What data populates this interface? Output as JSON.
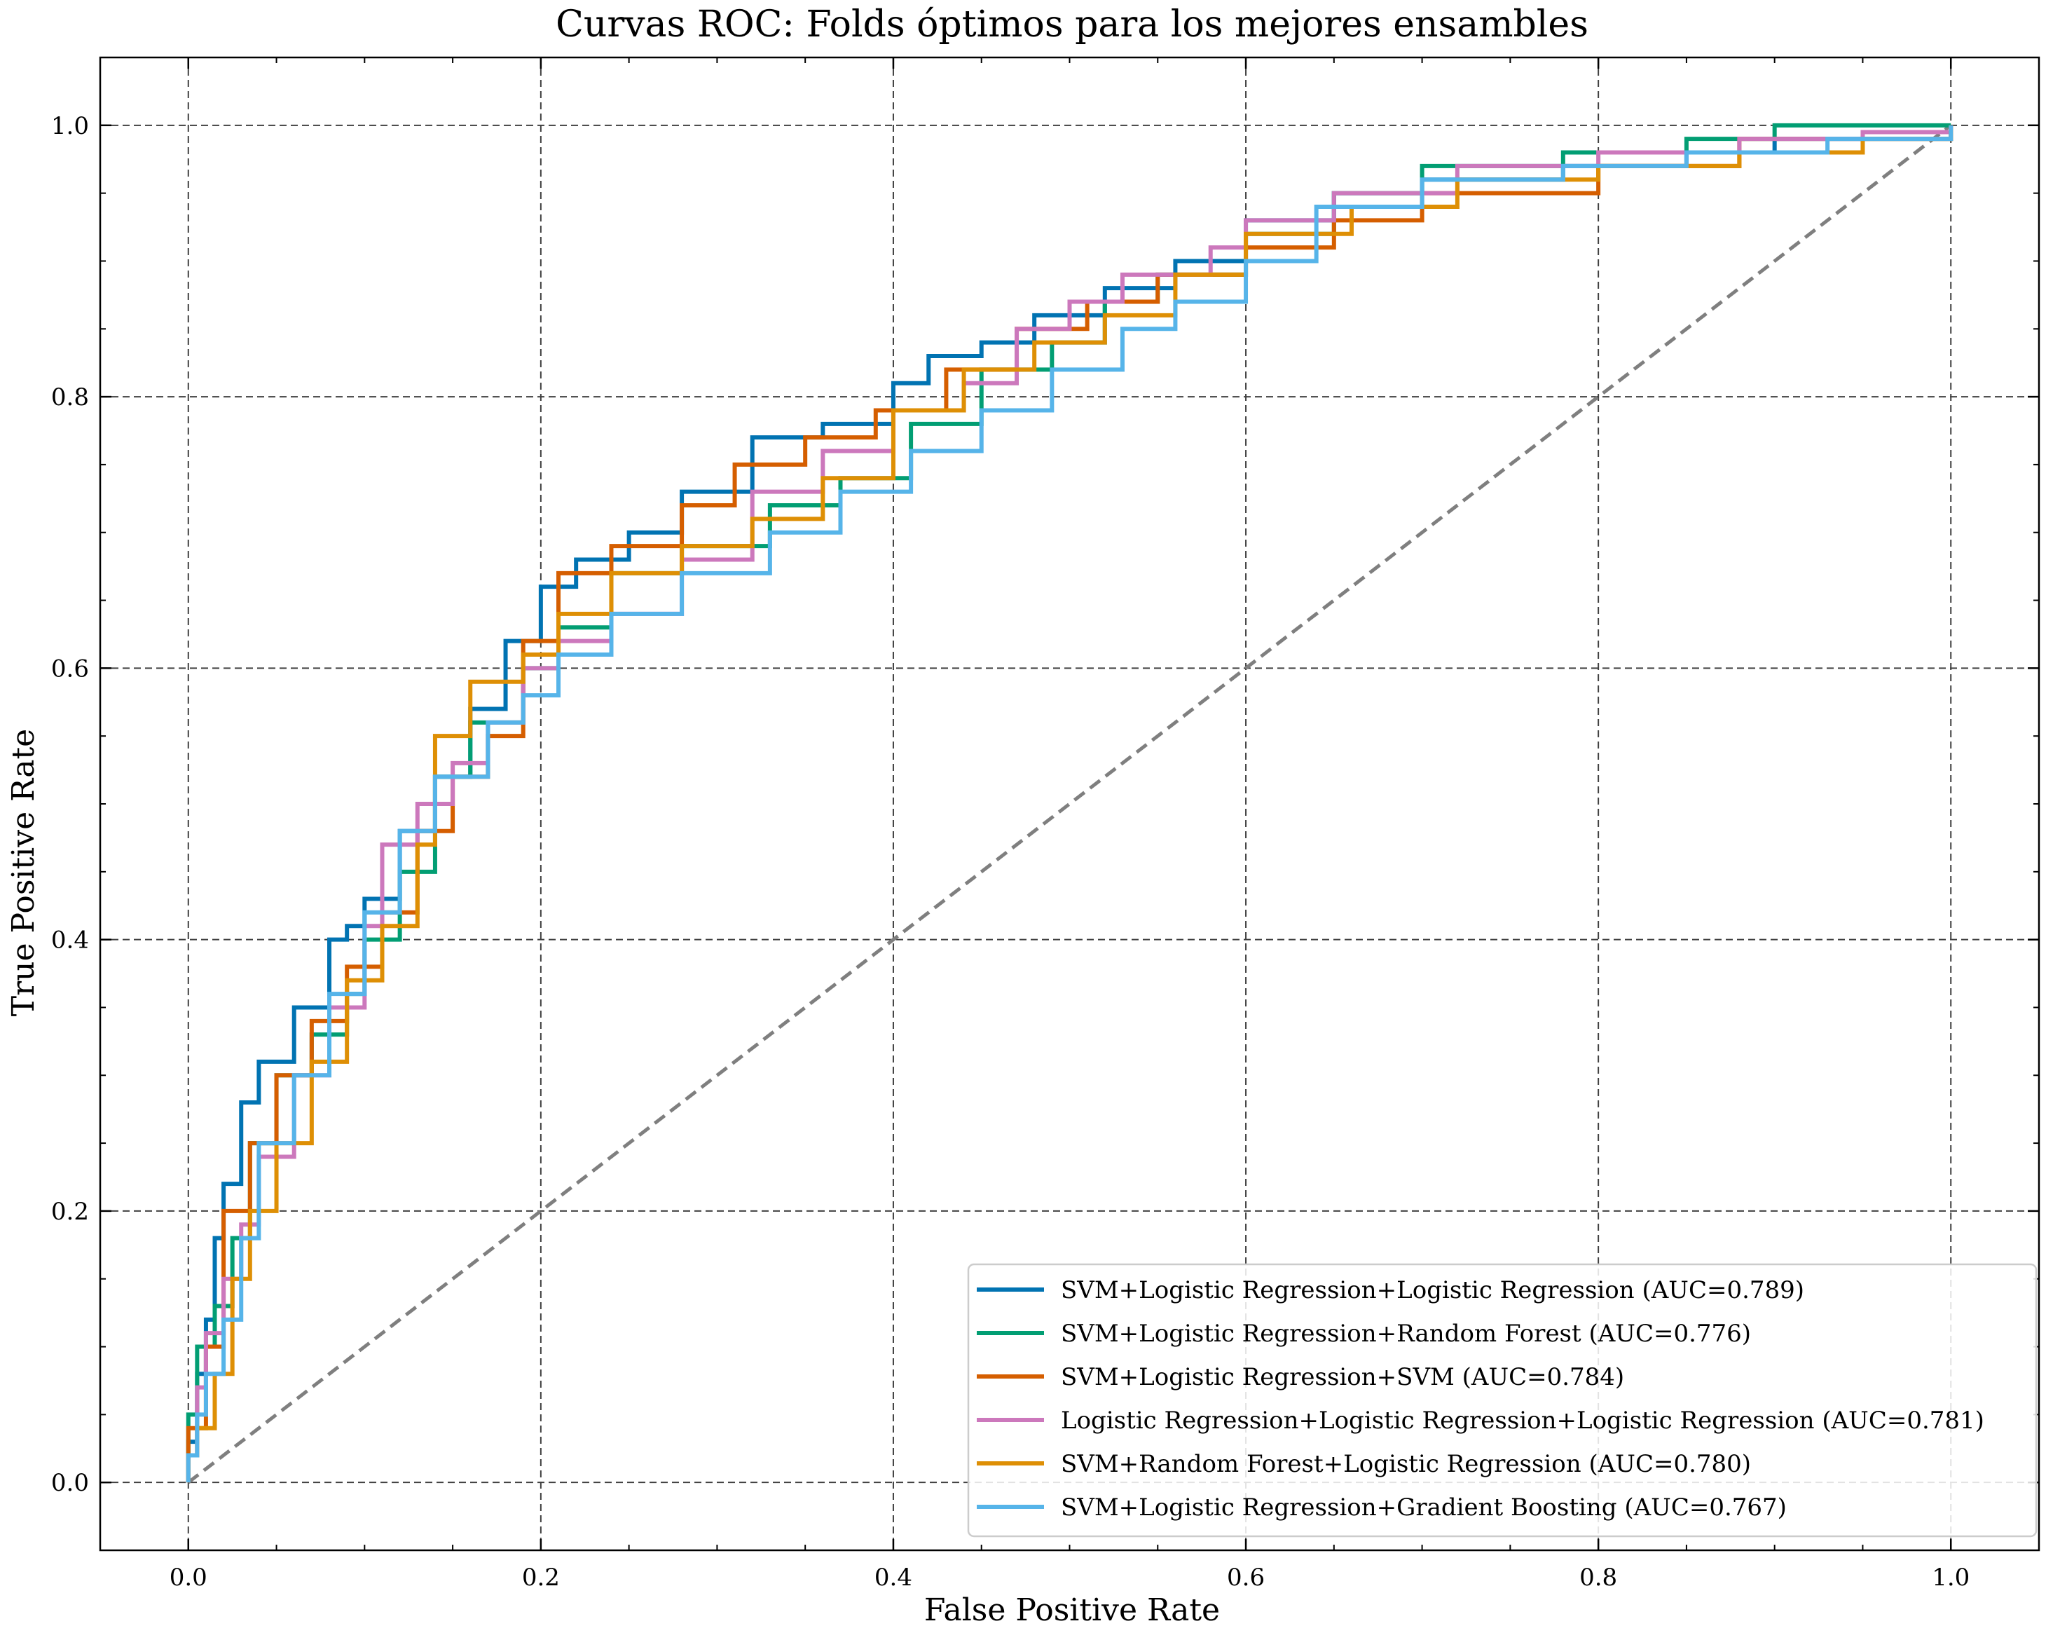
{
  "chart_data": {
    "type": "line",
    "title": "Curvas ROC: Folds óptimos para los mejores ensambles",
    "xlabel": "False Positive Rate",
    "ylabel": "True Positive Rate",
    "xlim": [
      -0.05,
      1.05
    ],
    "ylim": [
      -0.05,
      1.05
    ],
    "xticks": [
      0.0,
      0.2,
      0.4,
      0.6,
      0.8,
      1.0
    ],
    "yticks": [
      0.0,
      0.2,
      0.4,
      0.6,
      0.8,
      1.0
    ],
    "xtick_labels": [
      "0.0",
      "0.2",
      "0.4",
      "0.6",
      "0.8",
      "1.0"
    ],
    "ytick_labels": [
      "0.0",
      "0.2",
      "0.4",
      "0.6",
      "0.8",
      "1.0"
    ],
    "grid": true,
    "legend_position": "lower-right",
    "diagonal": {
      "x": [
        0,
        1
      ],
      "y": [
        0,
        1
      ],
      "color": "#7f7f7f",
      "style": "dashed"
    },
    "series": [
      {
        "name": "SVM+Logistic Regression+Logistic Regression (AUC=0.789)",
        "color": "#0173b2",
        "x": [
          0.0,
          0.0,
          0.005,
          0.01,
          0.015,
          0.02,
          0.03,
          0.04,
          0.06,
          0.08,
          0.09,
          0.1,
          0.12,
          0.14,
          0.16,
          0.18,
          0.2,
          0.22,
          0.25,
          0.28,
          0.32,
          0.36,
          0.4,
          0.42,
          0.45,
          0.48,
          0.52,
          0.56,
          0.6,
          0.65,
          0.7,
          0.78,
          0.85,
          0.9,
          1.0
        ],
        "y": [
          0.0,
          0.03,
          0.08,
          0.12,
          0.18,
          0.22,
          0.28,
          0.31,
          0.35,
          0.4,
          0.41,
          0.43,
          0.48,
          0.52,
          0.57,
          0.62,
          0.66,
          0.68,
          0.7,
          0.73,
          0.77,
          0.78,
          0.81,
          0.83,
          0.84,
          0.86,
          0.88,
          0.9,
          0.93,
          0.95,
          0.96,
          0.97,
          0.98,
          0.99,
          1.0
        ]
      },
      {
        "name": "SVM+Logistic Regression+Random Forest (AUC=0.776)",
        "color": "#029e73",
        "x": [
          0.0,
          0.0,
          0.005,
          0.015,
          0.025,
          0.035,
          0.05,
          0.07,
          0.09,
          0.1,
          0.12,
          0.14,
          0.16,
          0.19,
          0.21,
          0.24,
          0.28,
          0.33,
          0.37,
          0.41,
          0.45,
          0.49,
          0.52,
          0.55,
          0.6,
          0.65,
          0.7,
          0.78,
          0.85,
          0.9,
          1.0
        ],
        "y": [
          0.0,
          0.05,
          0.1,
          0.13,
          0.18,
          0.25,
          0.3,
          0.33,
          0.36,
          0.4,
          0.45,
          0.52,
          0.56,
          0.6,
          0.63,
          0.67,
          0.69,
          0.72,
          0.74,
          0.78,
          0.82,
          0.84,
          0.87,
          0.89,
          0.92,
          0.95,
          0.97,
          0.98,
          0.99,
          1.0,
          1.0
        ]
      },
      {
        "name": "SVM+Logistic Regression+SVM (AUC=0.784)",
        "color": "#d55e00",
        "x": [
          0.0,
          0.0,
          0.01,
          0.02,
          0.035,
          0.05,
          0.07,
          0.09,
          0.11,
          0.13,
          0.15,
          0.17,
          0.19,
          0.21,
          0.24,
          0.28,
          0.31,
          0.35,
          0.39,
          0.43,
          0.47,
          0.51,
          0.55,
          0.6,
          0.65,
          0.7,
          0.8,
          0.88,
          1.0
        ],
        "y": [
          0.0,
          0.04,
          0.1,
          0.2,
          0.25,
          0.3,
          0.34,
          0.38,
          0.42,
          0.48,
          0.52,
          0.55,
          0.62,
          0.67,
          0.69,
          0.72,
          0.75,
          0.77,
          0.79,
          0.82,
          0.85,
          0.87,
          0.89,
          0.91,
          0.93,
          0.95,
          0.97,
          0.99,
          1.0
        ]
      },
      {
        "name": "Logistic Regression+Logistic Regression+Logistic Regression (AUC=0.781)",
        "color": "#cc78bc",
        "x": [
          0.0,
          0.0,
          0.005,
          0.01,
          0.02,
          0.03,
          0.04,
          0.06,
          0.08,
          0.1,
          0.11,
          0.13,
          0.15,
          0.17,
          0.19,
          0.21,
          0.24,
          0.28,
          0.32,
          0.36,
          0.4,
          0.44,
          0.47,
          0.5,
          0.53,
          0.58,
          0.6,
          0.65,
          0.72,
          0.8,
          0.88,
          0.95,
          1.0
        ],
        "y": [
          0.0,
          0.02,
          0.07,
          0.11,
          0.15,
          0.19,
          0.24,
          0.3,
          0.35,
          0.41,
          0.47,
          0.5,
          0.53,
          0.56,
          0.6,
          0.62,
          0.64,
          0.68,
          0.73,
          0.76,
          0.79,
          0.81,
          0.85,
          0.87,
          0.89,
          0.91,
          0.93,
          0.95,
          0.97,
          0.98,
          0.99,
          0.995,
          1.0
        ]
      },
      {
        "name": "SVM+Random Forest+Logistic Regression (AUC=0.780)",
        "color": "#de8f05",
        "x": [
          0.0,
          0.0,
          0.005,
          0.015,
          0.025,
          0.035,
          0.05,
          0.07,
          0.09,
          0.11,
          0.13,
          0.14,
          0.16,
          0.19,
          0.21,
          0.24,
          0.28,
          0.32,
          0.36,
          0.4,
          0.44,
          0.48,
          0.52,
          0.56,
          0.6,
          0.66,
          0.72,
          0.8,
          0.88,
          0.95,
          1.0
        ],
        "y": [
          0.0,
          0.02,
          0.04,
          0.08,
          0.15,
          0.2,
          0.25,
          0.31,
          0.37,
          0.41,
          0.47,
          0.55,
          0.59,
          0.61,
          0.64,
          0.67,
          0.69,
          0.71,
          0.74,
          0.79,
          0.82,
          0.84,
          0.86,
          0.89,
          0.92,
          0.94,
          0.96,
          0.97,
          0.98,
          0.99,
          1.0
        ]
      },
      {
        "name": "SVM+Logistic Regression+Gradient Boosting (AUC=0.767)",
        "color": "#56b4e9",
        "x": [
          0.0,
          0.0,
          0.005,
          0.01,
          0.02,
          0.03,
          0.04,
          0.06,
          0.08,
          0.1,
          0.12,
          0.14,
          0.17,
          0.19,
          0.21,
          0.24,
          0.28,
          0.33,
          0.37,
          0.41,
          0.45,
          0.49,
          0.53,
          0.56,
          0.6,
          0.64,
          0.7,
          0.78,
          0.85,
          0.93,
          1.0
        ],
        "y": [
          0.0,
          0.02,
          0.05,
          0.08,
          0.12,
          0.18,
          0.25,
          0.3,
          0.36,
          0.42,
          0.48,
          0.52,
          0.56,
          0.58,
          0.61,
          0.64,
          0.67,
          0.7,
          0.73,
          0.76,
          0.79,
          0.82,
          0.85,
          0.87,
          0.9,
          0.94,
          0.96,
          0.97,
          0.98,
          0.99,
          1.0
        ]
      }
    ]
  }
}
